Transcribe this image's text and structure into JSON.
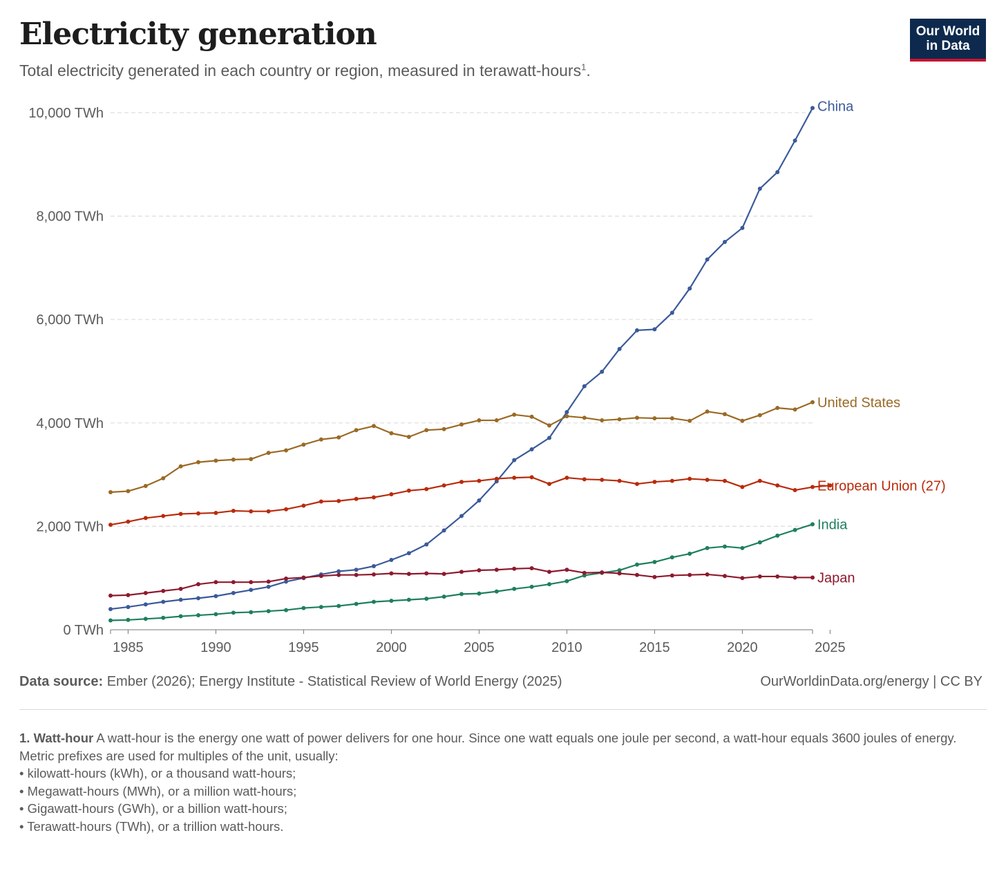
{
  "header": {
    "title": "Electricity generation",
    "subtitle": "Total electricity generated in each country or region, measured in terawatt-hours",
    "subtitle_sup": "1",
    "subtitle_end": "."
  },
  "logo": {
    "line1": "Our World",
    "line2": "in Data",
    "bg_color": "#0d2a4e",
    "accent_color": "#c8102e"
  },
  "chart_data": {
    "type": "line",
    "title": "Electricity generation",
    "xlabel": "",
    "ylabel": "",
    "xlim": [
      1984,
      2025
    ],
    "ylim": [
      0,
      10000
    ],
    "x_ticks": [
      1985,
      1990,
      1995,
      2000,
      2005,
      2010,
      2015,
      2020,
      2025
    ],
    "y_ticks": [
      {
        "value": 0,
        "label": "0 TWh"
      },
      {
        "value": 2000,
        "label": "2,000 TWh"
      },
      {
        "value": 4000,
        "label": "4,000 TWh"
      },
      {
        "value": 6000,
        "label": "6,000 TWh"
      },
      {
        "value": 8000,
        "label": "8,000 TWh"
      },
      {
        "value": 10000,
        "label": "10,000 TWh"
      }
    ],
    "grid": "horizontal dashed",
    "legend": "inline labels at line ends (right)",
    "series": [
      {
        "name": "China",
        "color": "#3a5a99",
        "x": [
          1984,
          1985,
          1986,
          1987,
          1988,
          1989,
          1990,
          1991,
          1992,
          1993,
          1994,
          1995,
          1996,
          1997,
          1998,
          1999,
          2000,
          2001,
          2002,
          2003,
          2004,
          2005,
          2006,
          2007,
          2008,
          2009,
          2010,
          2011,
          2012,
          2013,
          2014,
          2015,
          2016,
          2017,
          2018,
          2019,
          2020,
          2021,
          2022,
          2023,
          2024
        ],
        "values": [
          400,
          440,
          490,
          540,
          580,
          610,
          650,
          710,
          770,
          830,
          930,
          1000,
          1070,
          1130,
          1160,
          1230,
          1350,
          1480,
          1650,
          1920,
          2200,
          2500,
          2870,
          3280,
          3490,
          3710,
          4210,
          4710,
          4990,
          5430,
          5790,
          5810,
          6130,
          6600,
          7160,
          7500,
          7770,
          8530,
          8850,
          9460,
          10090
        ]
      },
      {
        "name": "United States",
        "color": "#9a6a25",
        "x": [
          1984,
          1985,
          1986,
          1987,
          1988,
          1989,
          1990,
          1991,
          1992,
          1993,
          1994,
          1995,
          1996,
          1997,
          1998,
          1999,
          2000,
          2001,
          2002,
          2003,
          2004,
          2005,
          2006,
          2007,
          2008,
          2009,
          2010,
          2011,
          2012,
          2013,
          2014,
          2015,
          2016,
          2017,
          2018,
          2019,
          2020,
          2021,
          2022,
          2023,
          2024
        ],
        "values": [
          2660,
          2680,
          2780,
          2930,
          3160,
          3240,
          3270,
          3290,
          3300,
          3420,
          3470,
          3580,
          3680,
          3720,
          3860,
          3940,
          3800,
          3730,
          3860,
          3880,
          3970,
          4050,
          4050,
          4160,
          4120,
          3950,
          4130,
          4100,
          4050,
          4070,
          4100,
          4090,
          4090,
          4040,
          4220,
          4170,
          4040,
          4150,
          4290,
          4260,
          4400
        ]
      },
      {
        "name": "European Union (27)",
        "color": "#b92b0c",
        "x": [
          1984,
          1985,
          1986,
          1987,
          1988,
          1989,
          1990,
          1991,
          1992,
          1993,
          1994,
          1995,
          1996,
          1997,
          1998,
          1999,
          2000,
          2001,
          2002,
          2003,
          2004,
          2005,
          2006,
          2007,
          2008,
          2009,
          2010,
          2011,
          2012,
          2013,
          2014,
          2015,
          2016,
          2017,
          2018,
          2019,
          2020,
          2021,
          2022,
          2023,
          2024,
          2025
        ],
        "values": [
          2030,
          2090,
          2160,
          2200,
          2240,
          2250,
          2260,
          2300,
          2290,
          2290,
          2330,
          2400,
          2480,
          2490,
          2530,
          2560,
          2620,
          2690,
          2720,
          2790,
          2860,
          2880,
          2920,
          2940,
          2950,
          2820,
          2940,
          2910,
          2900,
          2880,
          2820,
          2860,
          2880,
          2920,
          2900,
          2880,
          2760,
          2880,
          2790,
          2700,
          2760,
          2790
        ]
      },
      {
        "name": "India",
        "color": "#1e7f5d",
        "x": [
          1984,
          1985,
          1986,
          1987,
          1988,
          1989,
          1990,
          1991,
          1992,
          1993,
          1994,
          1995,
          1996,
          1997,
          1998,
          1999,
          2000,
          2001,
          2002,
          2003,
          2004,
          2005,
          2006,
          2007,
          2008,
          2009,
          2010,
          2011,
          2012,
          2013,
          2014,
          2015,
          2016,
          2017,
          2018,
          2019,
          2020,
          2021,
          2022,
          2023,
          2024
        ],
        "values": [
          180,
          190,
          210,
          230,
          260,
          280,
          300,
          330,
          340,
          360,
          380,
          420,
          440,
          460,
          500,
          540,
          560,
          580,
          600,
          640,
          690,
          700,
          740,
          790,
          830,
          880,
          940,
          1050,
          1100,
          1150,
          1260,
          1310,
          1400,
          1470,
          1580,
          1610,
          1580,
          1690,
          1820,
          1930,
          2040
        ]
      },
      {
        "name": "Japan",
        "color": "#8d1a2e",
        "x": [
          1984,
          1985,
          1986,
          1987,
          1988,
          1989,
          1990,
          1991,
          1992,
          1993,
          1994,
          1995,
          1996,
          1997,
          1998,
          1999,
          2000,
          2001,
          2002,
          2003,
          2004,
          2005,
          2006,
          2007,
          2008,
          2009,
          2010,
          2011,
          2012,
          2013,
          2014,
          2015,
          2016,
          2017,
          2018,
          2019,
          2020,
          2021,
          2022,
          2023,
          2024
        ],
        "values": [
          660,
          670,
          710,
          750,
          790,
          880,
          920,
          920,
          920,
          930,
          990,
          1010,
          1040,
          1060,
          1060,
          1070,
          1090,
          1080,
          1090,
          1080,
          1120,
          1150,
          1160,
          1180,
          1190,
          1120,
          1160,
          1100,
          1110,
          1090,
          1060,
          1020,
          1050,
          1060,
          1070,
          1040,
          1000,
          1030,
          1030,
          1010,
          1010
        ]
      }
    ]
  },
  "footer": {
    "source_label": "Data source:",
    "source_text": " Ember (2026); Energy Institute - Statistical Review of World Energy (2025)",
    "credit": "OurWorldinData.org/energy | CC BY"
  },
  "footnote": {
    "heading": "1. Watt-hour",
    "text": " A watt-hour is the energy one watt of power delivers for one hour. Since one watt equals one joule per second, a watt-hour equals 3600 joules of energy.",
    "intro": "Metric prefixes are used for multiples of the unit, usually:",
    "items": [
      "kilowatt-hours (kWh), or a thousand watt-hours;",
      "Megawatt-hours (MWh), or a million watt-hours;",
      "Gigawatt-hours (GWh), or a billion watt-hours;",
      "Terawatt-hours (TWh), or a trillion watt-hours."
    ]
  }
}
